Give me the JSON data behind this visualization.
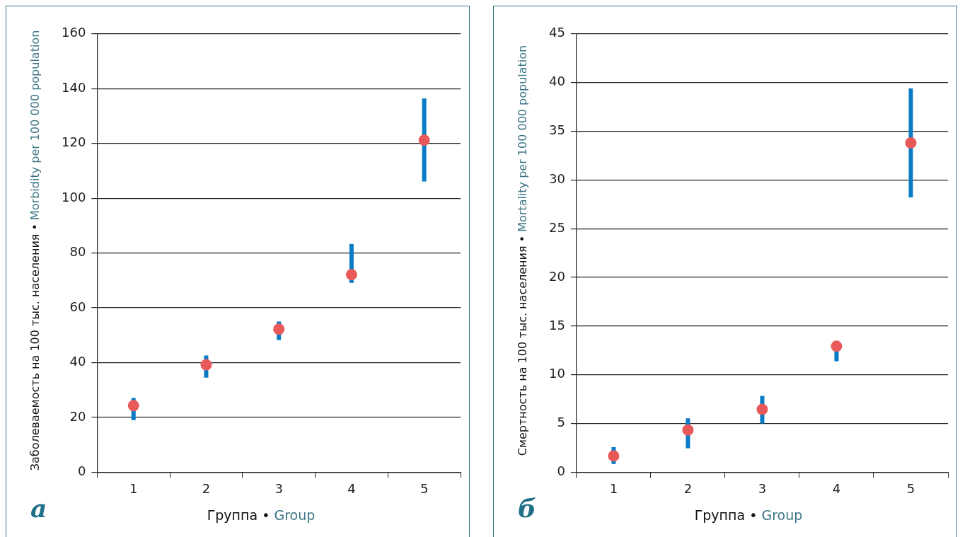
{
  "chart_data": [
    {
      "type": "scatter",
      "categories": [
        "1",
        "2",
        "3",
        "4",
        "5"
      ],
      "series": [
        {
          "color": "#e85a5a",
          "values": [
            24.3,
            39.2,
            52.2,
            72.1,
            121.2
          ],
          "errors": [
            [
              19.0,
              27.1
            ],
            [
              34.5,
              42.6
            ],
            [
              48.2,
              55.0
            ],
            [
              69.1,
              83.3
            ],
            [
              106.1,
              136.4
            ]
          ]
        }
      ],
      "ylim": [
        0,
        160
      ],
      "yticks": [
        0,
        20,
        40,
        60,
        80,
        100,
        120,
        140,
        160
      ],
      "grid": "y",
      "legend": false,
      "marker": "circle",
      "xlabel": "Группа • Group",
      "ylabel": "Заболеваемость на 100 тыс. населения • Morbidity per 100 000 population",
      "annotations": [
        "а"
      ]
    },
    {
      "type": "scatter",
      "categories": [
        "1",
        "2",
        "3",
        "4",
        "5"
      ],
      "series": [
        {
          "color": "#e85a5a",
          "values": [
            1.67,
            4.33,
            6.45,
            12.93,
            33.8
          ],
          "errors": [
            [
              0.84,
              2.57
            ],
            [
              2.45,
              5.53
            ],
            [
              5.0,
              7.83
            ],
            [
              11.38,
              12.93
            ],
            [
              28.2,
              39.4
            ]
          ]
        }
      ],
      "ylim": [
        0,
        45
      ],
      "yticks": [
        0,
        5,
        10,
        15,
        20,
        25,
        30,
        35,
        40,
        45
      ],
      "grid": "y",
      "legend": false,
      "marker": "circle",
      "xlabel": "Группа • Group",
      "ylabel": "Смертность на 100 тыс. населения • Mortality per 100 000 population",
      "annotations": [
        "б"
      ]
    }
  ]
}
